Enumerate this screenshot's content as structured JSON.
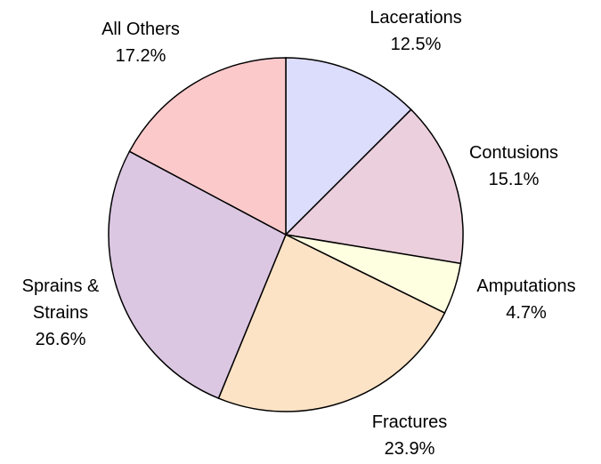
{
  "chart_data": {
    "type": "pie",
    "categories": [
      "Lacerations",
      "Contusions",
      "Amputations",
      "Fractures",
      "Sprains & Strains",
      "All Others"
    ],
    "values": [
      12.5,
      15.1,
      4.7,
      23.9,
      26.6,
      17.2
    ],
    "value_labels": [
      "12.5%",
      "15.1%",
      "4.7%",
      "23.9%",
      "26.6%",
      "17.2%"
    ],
    "colors": [
      "#dcdcfc",
      "#ebcfdc",
      "#fefee0",
      "#fde3c6",
      "#dcc7e3",
      "#fcc9cb"
    ]
  }
}
